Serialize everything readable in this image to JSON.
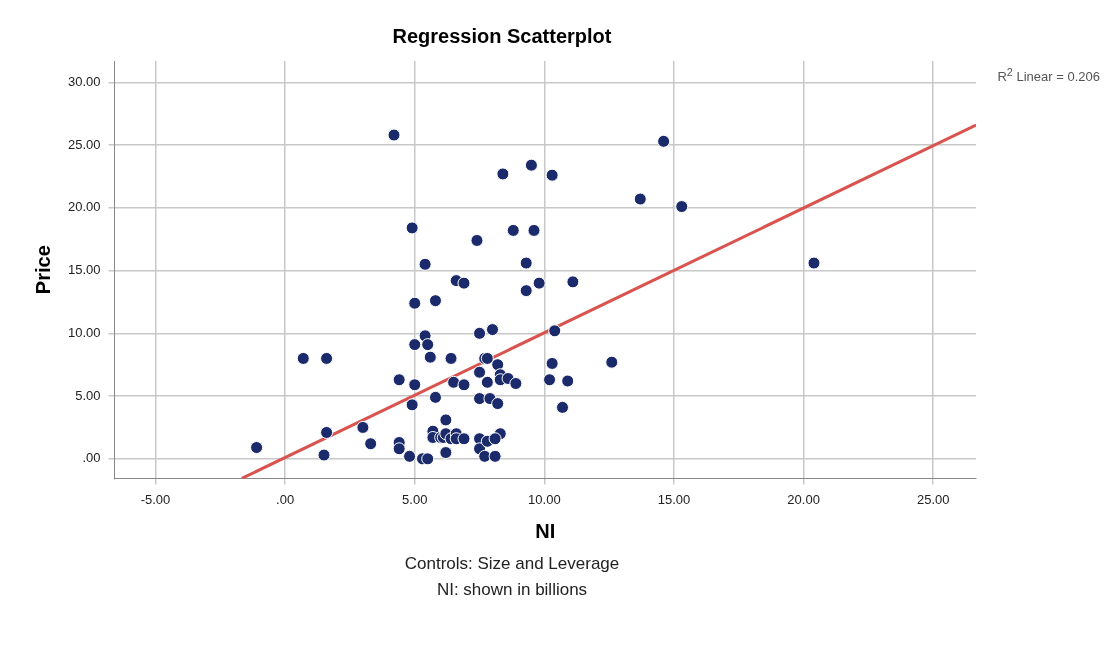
{
  "chart_data": {
    "type": "scatter",
    "title": "Regression Scatterplot",
    "xlabel": "NI",
    "ylabel": "Price",
    "annotations": [
      "R$^{2}$ Linear = 0.206",
      "Controls: Size and Leverage",
      "NI: shown in billions"
    ],
    "xlim": [
      -6.58,
      26.65
    ],
    "ylim": [
      -1.56,
      31.7
    ],
    "xticks": [
      {
        "value": -5,
        "label": "-5.00"
      },
      {
        "value": 0,
        "label": ".00"
      },
      {
        "value": 5,
        "label": "5.00"
      },
      {
        "value": 10,
        "label": "10.00"
      },
      {
        "value": 15,
        "label": "15.00"
      },
      {
        "value": 20,
        "label": "20.00"
      },
      {
        "value": 25,
        "label": "25.00"
      }
    ],
    "yticks": [
      {
        "value": 0,
        "label": ".00"
      },
      {
        "value": 5,
        "label": "5.00"
      },
      {
        "value": 10,
        "label": "10.00"
      },
      {
        "value": 15,
        "label": "15.00"
      },
      {
        "value": 20,
        "label": "20.00"
      },
      {
        "value": 25,
        "label": "25.00"
      },
      {
        "value": 30,
        "label": "30.00"
      }
    ],
    "grid": true,
    "legend": false,
    "series": [
      {
        "type": "scatter",
        "marker": "circle",
        "color": "#1b2a6b",
        "x": [
          -1.1,
          0.7,
          1.6,
          1.6,
          1.5,
          3.0,
          3.3,
          4.2,
          4.4,
          4.4,
          4.4,
          4.9,
          4.9,
          4.8,
          5.0,
          5.0,
          5.0,
          5.3,
          5.5,
          5.4,
          5.4,
          5.5,
          5.6,
          5.8,
          5.8,
          5.7,
          5.7,
          6.0,
          6.2,
          6.1,
          6.2,
          6.4,
          6.2,
          6.4,
          6.5,
          6.6,
          6.6,
          6.9,
          6.9,
          6.6,
          6.9,
          7.4,
          7.5,
          7.5,
          7.5,
          7.5,
          7.5,
          7.7,
          7.7,
          7.8,
          7.8,
          7.9,
          7.8,
          8.0,
          8.1,
          8.2,
          8.2,
          8.3,
          8.3,
          8.3,
          8.4,
          8.6,
          8.9,
          8.8,
          8.1,
          9.3,
          9.3,
          9.5,
          9.6,
          9.8,
          10.2,
          10.3,
          10.3,
          10.4,
          10.7,
          10.9,
          11.1,
          12.6,
          13.7,
          14.6,
          15.3,
          20.4
        ],
        "values": [
          0.9,
          8.0,
          8.0,
          2.1,
          0.3,
          2.5,
          1.2,
          25.8,
          6.3,
          1.3,
          0.8,
          18.4,
          4.3,
          0.2,
          12.4,
          9.1,
          5.9,
          0.0,
          0.0,
          15.5,
          9.8,
          9.1,
          8.1,
          12.6,
          4.9,
          2.2,
          1.7,
          1.7,
          3.1,
          1.7,
          2.0,
          1.6,
          0.5,
          8.0,
          6.1,
          2.0,
          1.6,
          1.6,
          5.9,
          14.2,
          14.0,
          17.4,
          10.0,
          4.8,
          1.6,
          0.8,
          6.9,
          8.0,
          0.2,
          6.1,
          8.0,
          4.8,
          1.4,
          10.3,
          0.2,
          4.4,
          7.5,
          6.7,
          6.3,
          2.0,
          22.7,
          6.4,
          6.0,
          18.2,
          1.6,
          15.6,
          13.4,
          23.4,
          18.2,
          14.0,
          6.3,
          22.6,
          7.6,
          10.2,
          4.1,
          6.2,
          14.1,
          7.7,
          20.7,
          25.3,
          20.1,
          15.6
        ]
      },
      {
        "type": "line",
        "marker": "none",
        "line_style": "solid",
        "color": "#d9534f",
        "x": [
          -1.67,
          26.65
        ],
        "values": [
          -1.56,
          26.6
        ]
      }
    ]
  }
}
